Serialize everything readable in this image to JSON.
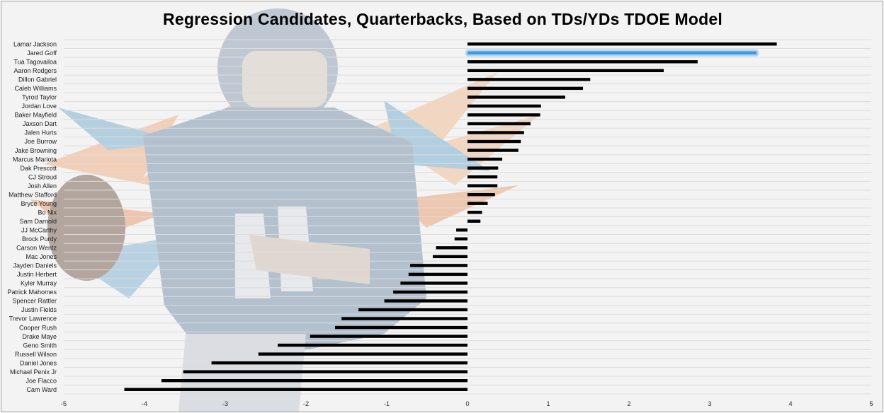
{
  "chart_data": {
    "type": "bar",
    "orientation": "horizontal",
    "title": "Regression Candidates, Quarterbacks, Based on TDs/YDs TDOE Model",
    "xlabel": "",
    "ylabel": "",
    "xlim": [
      -5,
      5
    ],
    "xticks": [
      "-5",
      "-4",
      "-3",
      "-2",
      "-1",
      "0",
      "1",
      "2",
      "3",
      "4",
      "5"
    ],
    "grid": true,
    "highlight": "Jared Goff",
    "highlight_color": "#3b9ae8",
    "bar_color": "#000000",
    "categories": [
      "Lamar Jackson",
      "Jared Goff",
      "Tua Tagovailoa",
      "Aaron Rodgers",
      "Dillon Gabriel",
      "Caleb Williams",
      "Tyrod Taylor",
      "Jordan Love",
      "Baker Mayfield",
      "Jaxson Dart",
      "Jalen Hurts",
      "Joe Burrow",
      "Jake Browning",
      "Marcus Mariota",
      "Dak Prescott",
      "CJ Stroud",
      "Josh Allen",
      "Matthew Stafford",
      "Bryce Young",
      "Bo Nix",
      "Sam Darnold",
      "JJ McCarthy",
      "Brock Purdy",
      "Carson Wentz",
      "Mac Jones",
      "Jayden Daniels",
      "Justin Herbert",
      "Kyler Murray",
      "Patrick Mahomes",
      "Spencer Rattler",
      "Justin Fields",
      "Trevor Lawrence",
      "Cooper Rush",
      "Drake Maye",
      "Geno Smith",
      "Russell Wilson",
      "Daniel Jones",
      "Michael Penix Jr",
      "Joe Flacco",
      "Cam Ward"
    ],
    "values": [
      3.83,
      3.58,
      2.85,
      2.43,
      1.52,
      1.43,
      1.21,
      0.91,
      0.9,
      0.78,
      0.7,
      0.66,
      0.63,
      0.43,
      0.38,
      0.37,
      0.37,
      0.34,
      0.25,
      0.18,
      0.16,
      -0.14,
      -0.16,
      -0.39,
      -0.43,
      -0.71,
      -0.73,
      -0.83,
      -0.92,
      -1.03,
      -1.35,
      -1.56,
      -1.64,
      -1.95,
      -2.35,
      -2.59,
      -3.17,
      -3.52,
      -3.79,
      -4.25
    ]
  }
}
